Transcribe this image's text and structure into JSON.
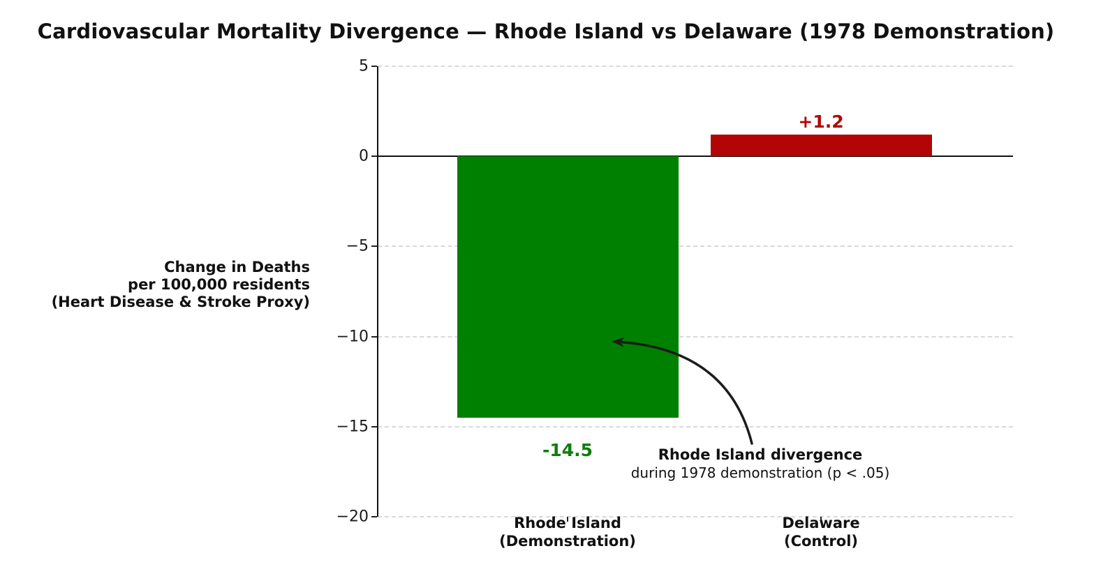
{
  "title": "Cardiovascular Mortality Divergence — Rhode Island vs Delaware (1978 Demonstration)",
  "chart_data": {
    "type": "bar",
    "title": "Cardiovascular Mortality Divergence — Rhode Island vs Delaware (1978 Demonstration)",
    "categories": [
      [
        "Rhode Island",
        "(Demonstration)"
      ],
      [
        "Delaware",
        "(Control)"
      ]
    ],
    "values": [
      -14.5,
      1.2
    ],
    "bar_labels": [
      "-14.5",
      "+1.2"
    ],
    "bar_colors": [
      "#008000",
      "#b30505"
    ],
    "bar_label_colors": [
      "#0e7d0e",
      "#b30505"
    ],
    "ylabel_lines": [
      "Change in Deaths",
      "per 100,000 residents",
      "(Heart Disease & Stroke Proxy)"
    ],
    "yticks": [
      5,
      0,
      -5,
      -10,
      -15,
      -20
    ],
    "ytick_labels": [
      "5",
      "0",
      "−5",
      "−10",
      "−15",
      "−20"
    ],
    "ylim": [
      -20,
      5
    ],
    "xlabel": "",
    "ylabel": "Change in Deaths per 100,000 residents (Heart Disease & Stroke Proxy)",
    "grid": "horizontal-dashed",
    "zero_line": "solid-black",
    "legend": "none",
    "annotation": {
      "text_bold": "Rhode Island divergence",
      "text_regular": "during 1978 demonstration (p < .05)",
      "arrow_target": "Rhode Island bar at −10 level"
    }
  },
  "colors": {
    "background": "#ffffff",
    "grid": "#d9d9d9",
    "axis": "#111111",
    "arrow": "#1c1c1c"
  }
}
